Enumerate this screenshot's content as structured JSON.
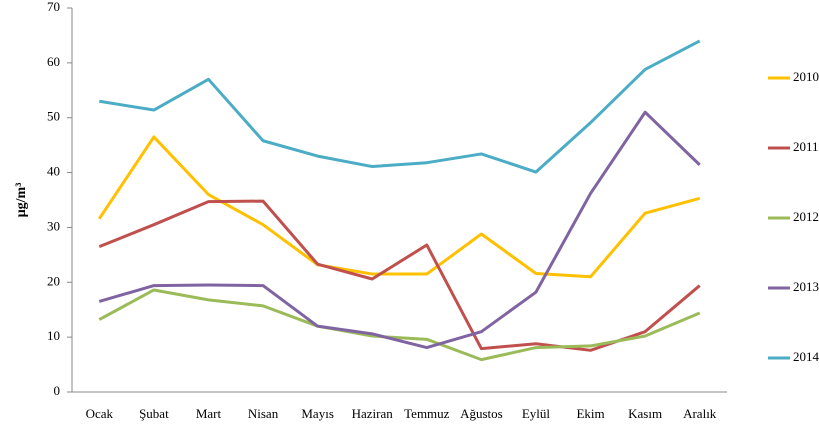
{
  "chart_data": {
    "type": "line",
    "y_label": "µg/m³",
    "categories": [
      "Ocak",
      "Şubat",
      "Mart",
      "Nisan",
      "Mayıs",
      "Haziran",
      "Temmuz",
      "Ağustos",
      "Eylül",
      "Ekim",
      "Kasım",
      "Aralık"
    ],
    "series": [
      {
        "name": "2010",
        "color": "#ffc000",
        "values": [
          31.6,
          46.5,
          36,
          30.5,
          23.2,
          21.5,
          21.5,
          28.8,
          21.6,
          21.0,
          32.6,
          35.3
        ]
      },
      {
        "name": "2011",
        "color": "#c0504d",
        "values": [
          26.5,
          30.5,
          34.7,
          34.8,
          23.3,
          20.6,
          26.8,
          7.9,
          8.8,
          7.6,
          11.0,
          19.4
        ]
      },
      {
        "name": "2012",
        "color": "#9bbb59",
        "values": [
          13.2,
          18.6,
          16.8,
          15.7,
          12.0,
          10.2,
          9.6,
          5.9,
          8.1,
          8.4,
          10.2,
          14.4
        ]
      },
      {
        "name": "2013",
        "color": "#8064a2",
        "values": [
          16.5,
          19.4,
          19.5,
          19.4,
          12.0,
          10.6,
          8.1,
          11.0,
          18.2,
          36.2,
          51.0,
          41.4
        ]
      },
      {
        "name": "2014",
        "color": "#4bacc6",
        "values": [
          53.0,
          51.4,
          57.0,
          45.8,
          43.0,
          41.1,
          41.8,
          43.4,
          40.1,
          49.1,
          58.8,
          64.0
        ]
      }
    ],
    "ylim": [
      0,
      70
    ],
    "yticks": [
      0,
      10,
      20,
      30,
      40,
      50,
      60,
      70
    ],
    "grid": false,
    "legend": "right"
  }
}
